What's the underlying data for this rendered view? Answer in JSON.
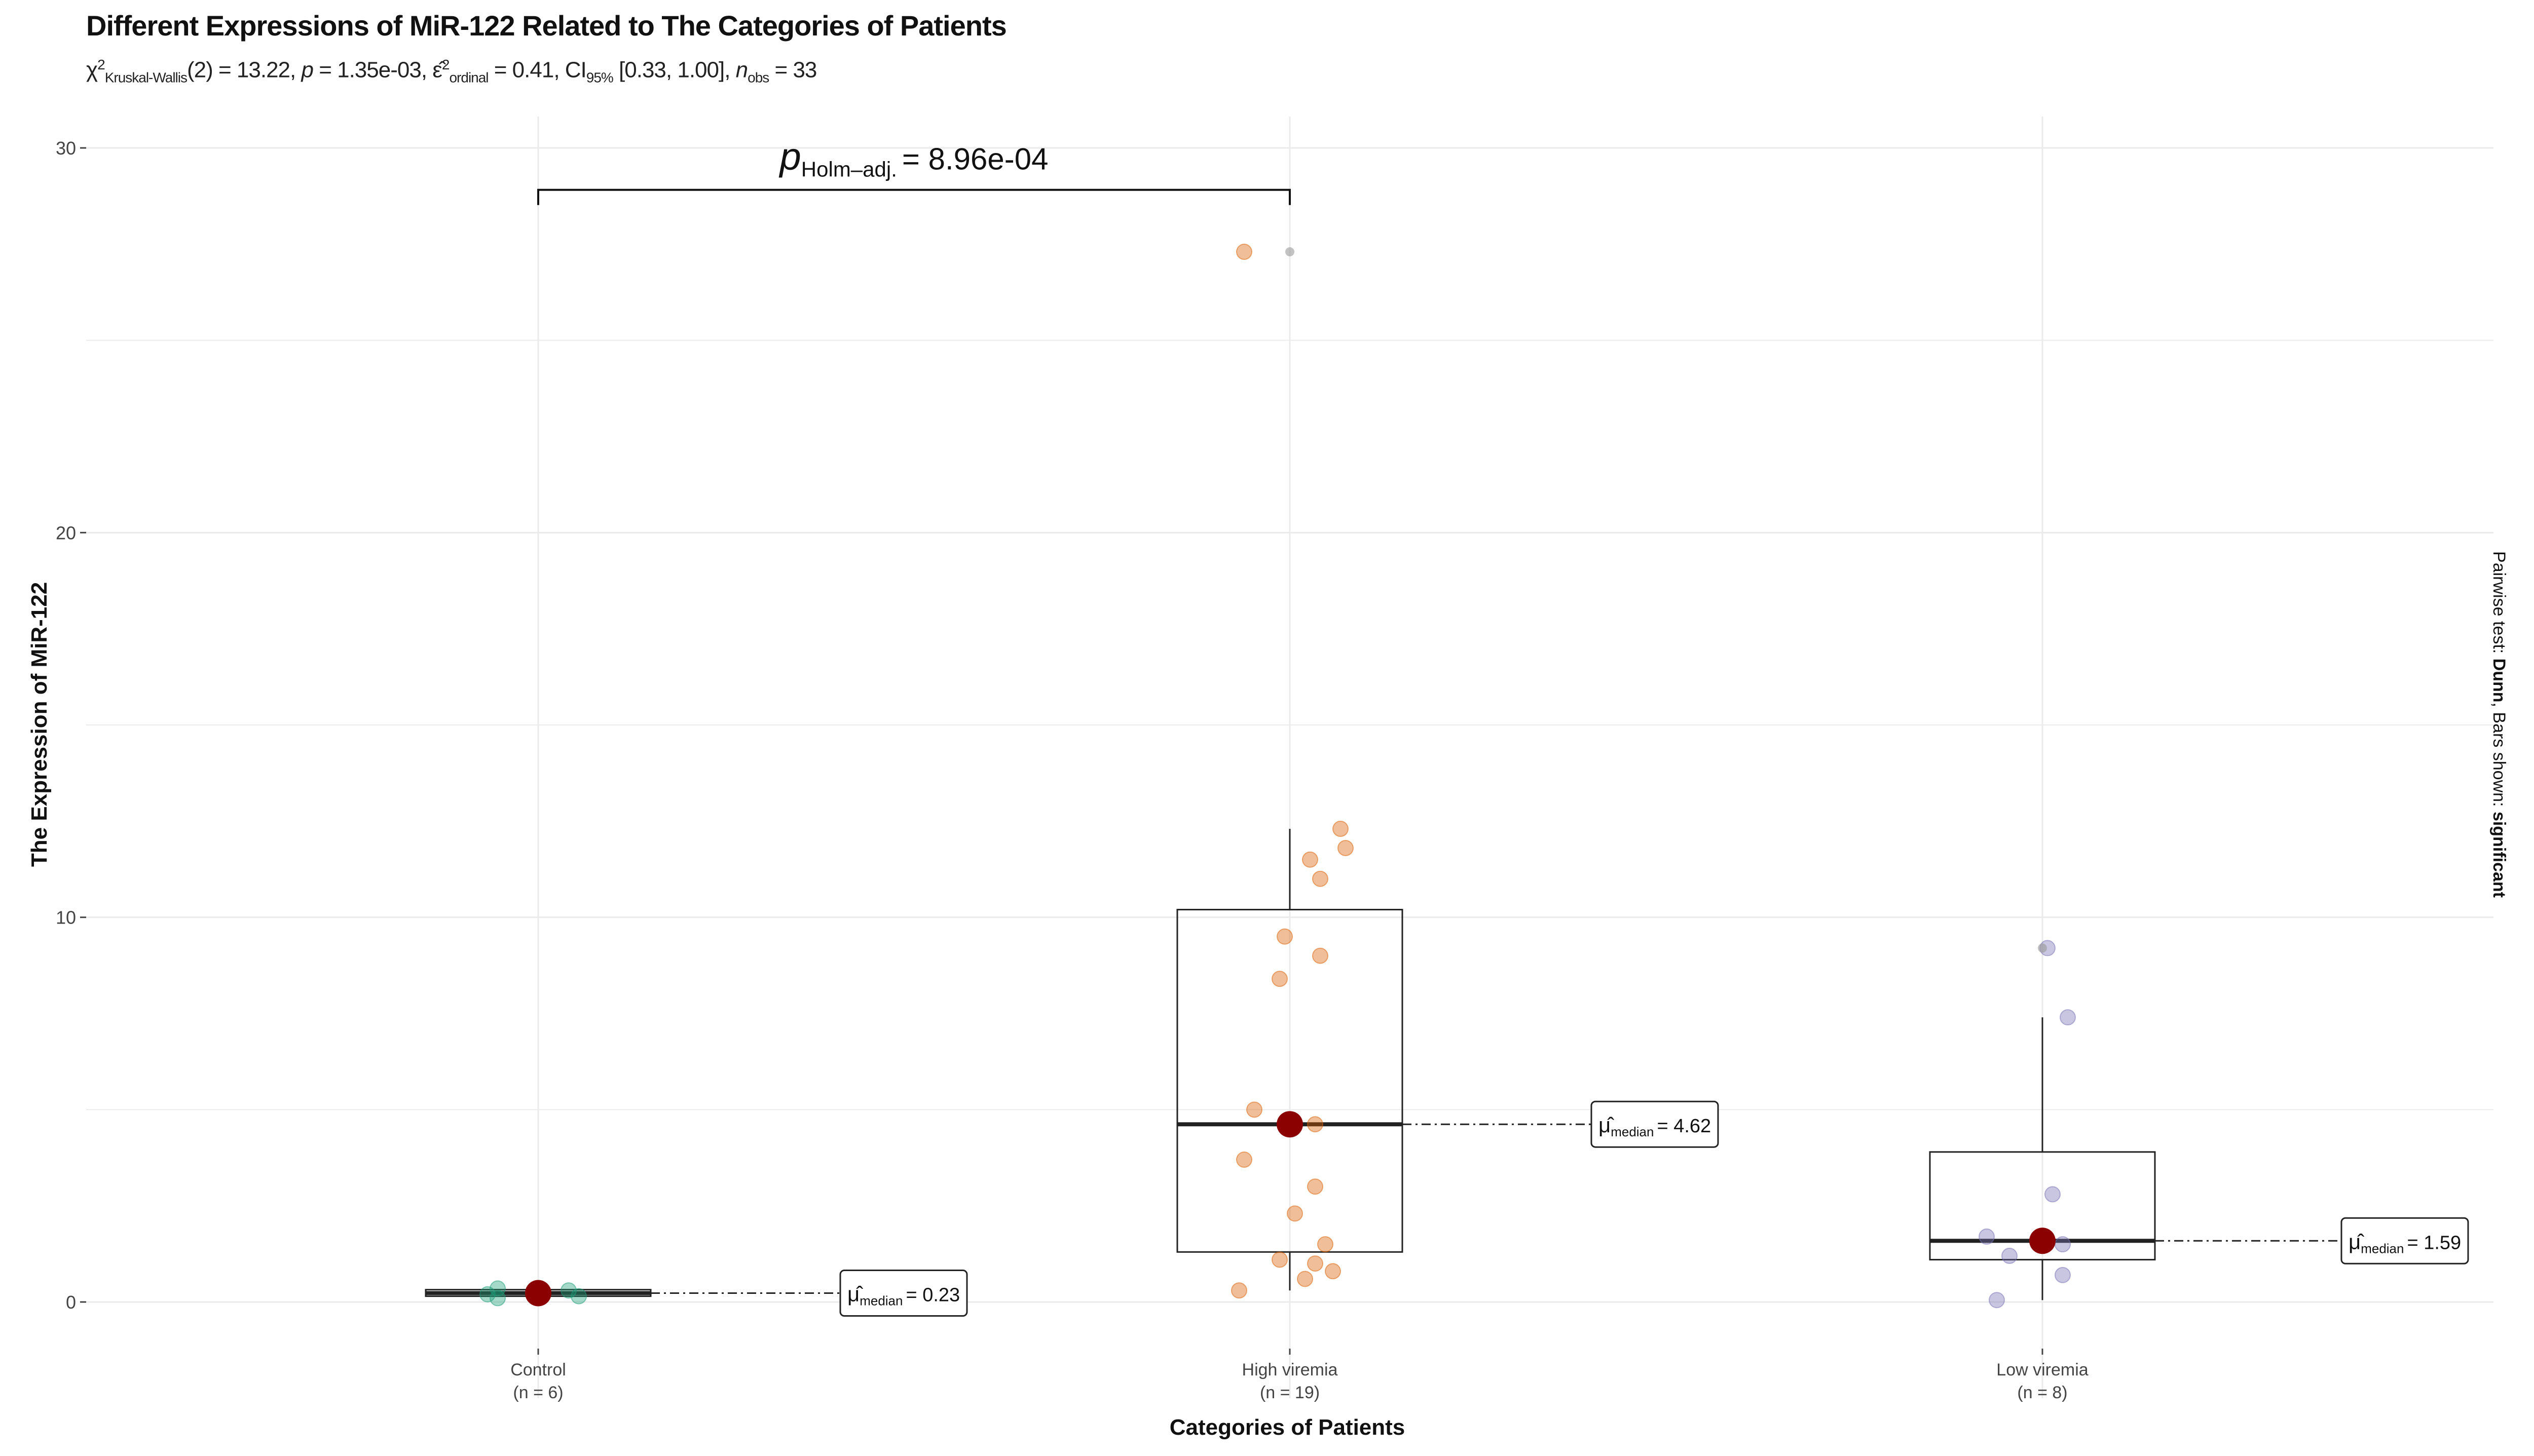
{
  "title": "Different Expressions of MiR-122 Related to The Categories of Patients",
  "subtitle": {
    "chi_symbol": "χ",
    "chi_sup": "2",
    "chi_sub": "Kruskal-Wallis",
    "df_stat": "(2) = 13.22, ",
    "p_label": "p",
    "p_value": " = 1.35e-03, ",
    "eps_symbol": "ε̂",
    "eps_sup": "2",
    "eps_sub": "ordinal",
    "eps_value": " = 0.41, CI",
    "ci_sub": "95%",
    "ci_value": " [0.33, 1.00], ",
    "n_label": "n",
    "n_sub": "obs",
    "n_value": " = 33"
  },
  "side_note": {
    "prefix": "Pairwise test: ",
    "test": "Dunn",
    "middle": ", Bars shown: ",
    "bars": "significant"
  },
  "pairwise": {
    "label_p": "p",
    "label_sub": "Holm–adj.",
    "value": "= 8.96e-04",
    "from": "Control",
    "to": "High viremia",
    "y": 29.2
  },
  "chart_data": {
    "type": "box",
    "title": "Different Expressions of MiR-122 Related to The Categories of Patients",
    "xlabel": "Categories of Patients",
    "ylabel": "The Expression of MiR-122",
    "ylim": [
      -1,
      31
    ],
    "yticks": [
      0,
      10,
      20,
      30
    ],
    "ytick_labels": [
      "0",
      "10",
      "20",
      "30"
    ],
    "grid": true,
    "categories": [
      "Control",
      "High viremia",
      "Low viremia"
    ],
    "category_n": [
      "(n = 6)",
      "(n = 19)",
      "(n = 8)"
    ],
    "colors": {
      "Control": "#1b9e77",
      "High viremia": "#d95f02",
      "Low viremia": "#7570b3",
      "median_point": "#8b0000"
    },
    "groups": [
      {
        "name": "Control",
        "median": 0.23,
        "median_label": "= 0.23",
        "box": {
          "q1": 0.15,
          "median": 0.23,
          "q3": 0.32,
          "whisker_low": 0.1,
          "whisker_high": 0.35
        },
        "points": [
          0.1,
          0.15,
          0.2,
          0.23,
          0.3,
          0.35
        ]
      },
      {
        "name": "High viremia",
        "median": 4.62,
        "median_label": "= 4.62",
        "box": {
          "q1": 1.3,
          "median": 4.62,
          "q3": 10.2,
          "whisker_low": 0.3,
          "whisker_high": 12.3
        },
        "points": [
          27.3,
          12.3,
          11.8,
          11.5,
          11.0,
          9.5,
          9.0,
          8.4,
          5.0,
          4.62,
          3.7,
          3.0,
          2.3,
          1.5,
          1.1,
          1.0,
          0.8,
          0.6,
          0.3
        ],
        "outlier": 27.3
      },
      {
        "name": "Low viremia",
        "median": 1.59,
        "median_label": "= 1.59",
        "box": {
          "q1": 1.1,
          "median": 1.59,
          "q3": 3.9,
          "whisker_low": 0.05,
          "whisker_high": 7.4
        },
        "points": [
          9.2,
          7.4,
          2.8,
          1.7,
          1.5,
          1.2,
          0.7,
          0.05
        ],
        "outlier": 9.2
      }
    ],
    "median_symbol": "μ̂",
    "median_sub": "median"
  }
}
